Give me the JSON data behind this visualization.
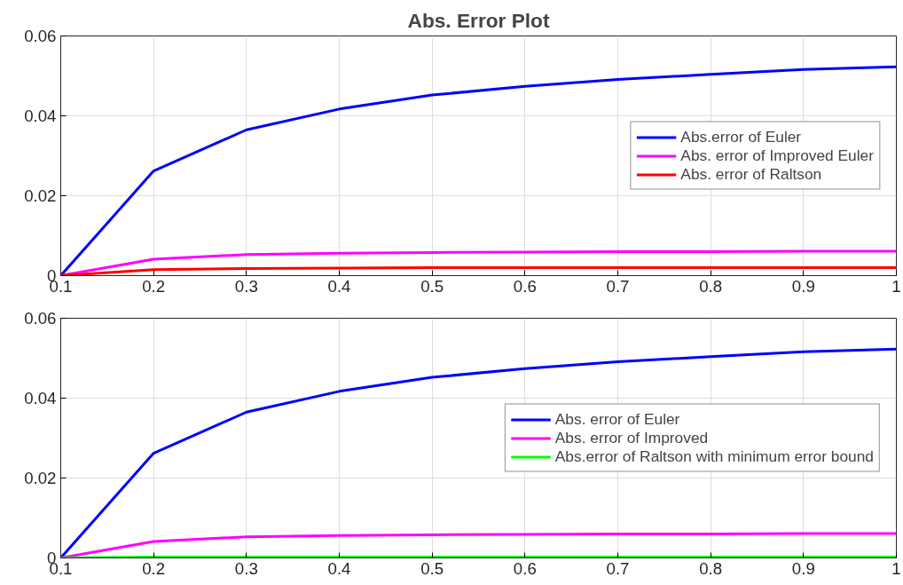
{
  "chart_data": [
    {
      "type": "line",
      "title": "Abs. Error Plot",
      "x": [
        0.1,
        0.2,
        0.3,
        0.4,
        0.5,
        0.6,
        0.7,
        0.8,
        0.9,
        1.0
      ],
      "xlim": [
        0.1,
        1
      ],
      "xticks": [
        0.1,
        0.2,
        0.3,
        0.4,
        0.5,
        0.6,
        0.7,
        0.8,
        0.9,
        1
      ],
      "ylim": [
        0,
        0.06
      ],
      "yticks": [
        0,
        0.02,
        0.04,
        0.06
      ],
      "grid": true,
      "legend": "right",
      "series": [
        {
          "name": "Abs.error of Euler",
          "color": "#0000ff",
          "values": [
            0,
            0.0262,
            0.0365,
            0.0417,
            0.0452,
            0.0474,
            0.0491,
            0.0504,
            0.0516,
            0.0523
          ]
        },
        {
          "name": "Abs. error of Improved Euler",
          "color": "#ff00ff",
          "values": [
            0,
            0.0041,
            0.0053,
            0.0056,
            0.0058,
            0.0059,
            0.006,
            0.006,
            0.0061,
            0.0061
          ]
        },
        {
          "name": "Abs. error of Raltson",
          "color": "#ff0000",
          "values": [
            0,
            0.0015,
            0.0018,
            0.0019,
            0.002,
            0.002,
            0.002,
            0.002,
            0.002,
            0.002
          ]
        }
      ]
    },
    {
      "type": "line",
      "x": [
        0.1,
        0.2,
        0.3,
        0.4,
        0.5,
        0.6,
        0.7,
        0.8,
        0.9,
        1.0
      ],
      "xlim": [
        0.1,
        1
      ],
      "xticks": [
        0.1,
        0.2,
        0.3,
        0.4,
        0.5,
        0.6,
        0.7,
        0.8,
        0.9,
        1
      ],
      "ylim": [
        0,
        0.06
      ],
      "yticks": [
        0,
        0.02,
        0.04,
        0.06
      ],
      "grid": true,
      "legend": "right",
      "series": [
        {
          "name": "Abs. error of Euler",
          "color": "#0000ff",
          "values": [
            0,
            0.0262,
            0.0365,
            0.0417,
            0.0452,
            0.0474,
            0.0491,
            0.0504,
            0.0516,
            0.0523
          ]
        },
        {
          "name": "Abs. error of Improved",
          "color": "#ff00ff",
          "values": [
            0,
            0.0041,
            0.0053,
            0.0056,
            0.0058,
            0.0059,
            0.006,
            0.006,
            0.0061,
            0.0061
          ]
        },
        {
          "name": "Abs.error of Raltson with minimum error bound",
          "color": "#00ff00",
          "values": [
            0,
            0.0002,
            0.0002,
            0.0002,
            0.0002,
            0.0002,
            0.0002,
            0.0002,
            0.0002,
            0.0002
          ]
        }
      ]
    }
  ]
}
